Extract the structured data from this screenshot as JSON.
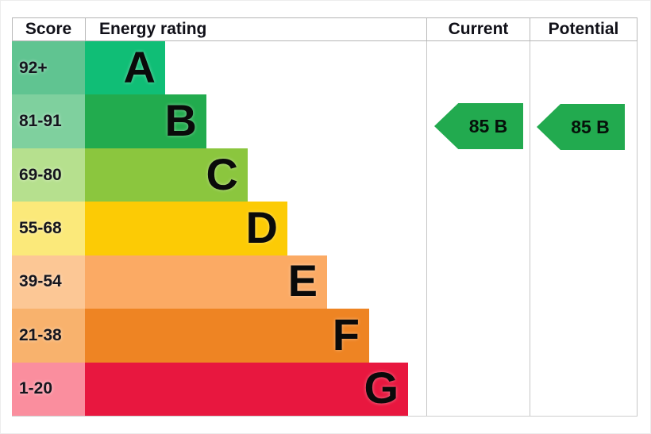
{
  "header": {
    "score": "Score",
    "energy_rating": "Energy rating",
    "current": "Current",
    "potential": "Potential"
  },
  "bands": [
    {
      "letter": "A",
      "score": "92+",
      "bar_color": "#10be76",
      "score_bg": "#60c491"
    },
    {
      "letter": "B",
      "score": "81-91",
      "bar_color": "#22ab4e",
      "score_bg": "#7fd09e"
    },
    {
      "letter": "C",
      "score": "69-80",
      "bar_color": "#8bc63e",
      "score_bg": "#b6e08e"
    },
    {
      "letter": "D",
      "score": "55-68",
      "bar_color": "#fccb05",
      "score_bg": "#fbe97a"
    },
    {
      "letter": "E",
      "score": "39-54",
      "bar_color": "#fbaa64",
      "score_bg": "#fcc795"
    },
    {
      "letter": "F",
      "score": "21-38",
      "bar_color": "#ee8423",
      "score_bg": "#f8b26d"
    },
    {
      "letter": "G",
      "score": "1-20",
      "bar_color": "#e8173f",
      "score_bg": "#fa8e9e"
    }
  ],
  "current": {
    "label": "85 B",
    "value": 85,
    "rating": "B",
    "arrow_color": "#22aa4f"
  },
  "potential": {
    "label": "85 B",
    "value": 85,
    "rating": "B",
    "arrow_color": "#22aa4f"
  },
  "colors": {
    "grid_border": "#b9b9b9",
    "background": "#ffffff"
  },
  "chart_data": {
    "type": "bar",
    "title": "Energy rating",
    "orientation": "horizontal",
    "categories": [
      "A",
      "B",
      "C",
      "D",
      "E",
      "F",
      "G"
    ],
    "score_ranges": [
      "92+",
      "81-91",
      "69-80",
      "55-68",
      "39-54",
      "21-38",
      "1-20"
    ],
    "band_colors": [
      "#10be76",
      "#22ab4e",
      "#8bc63e",
      "#fccb05",
      "#fbaa64",
      "#ee8423",
      "#e8173f"
    ],
    "bar_lengths_relative": [
      1,
      1.5,
      2,
      2.5,
      3,
      3.5,
      4
    ],
    "markers": {
      "current": {
        "value": 85,
        "band": "B",
        "label": "85 B"
      },
      "potential": {
        "value": 85,
        "band": "B",
        "label": "85 B"
      }
    },
    "columns": [
      "Score",
      "Energy rating",
      "Current",
      "Potential"
    ],
    "grid": "table borders on, no axis ticks",
    "legend_position": "none"
  }
}
